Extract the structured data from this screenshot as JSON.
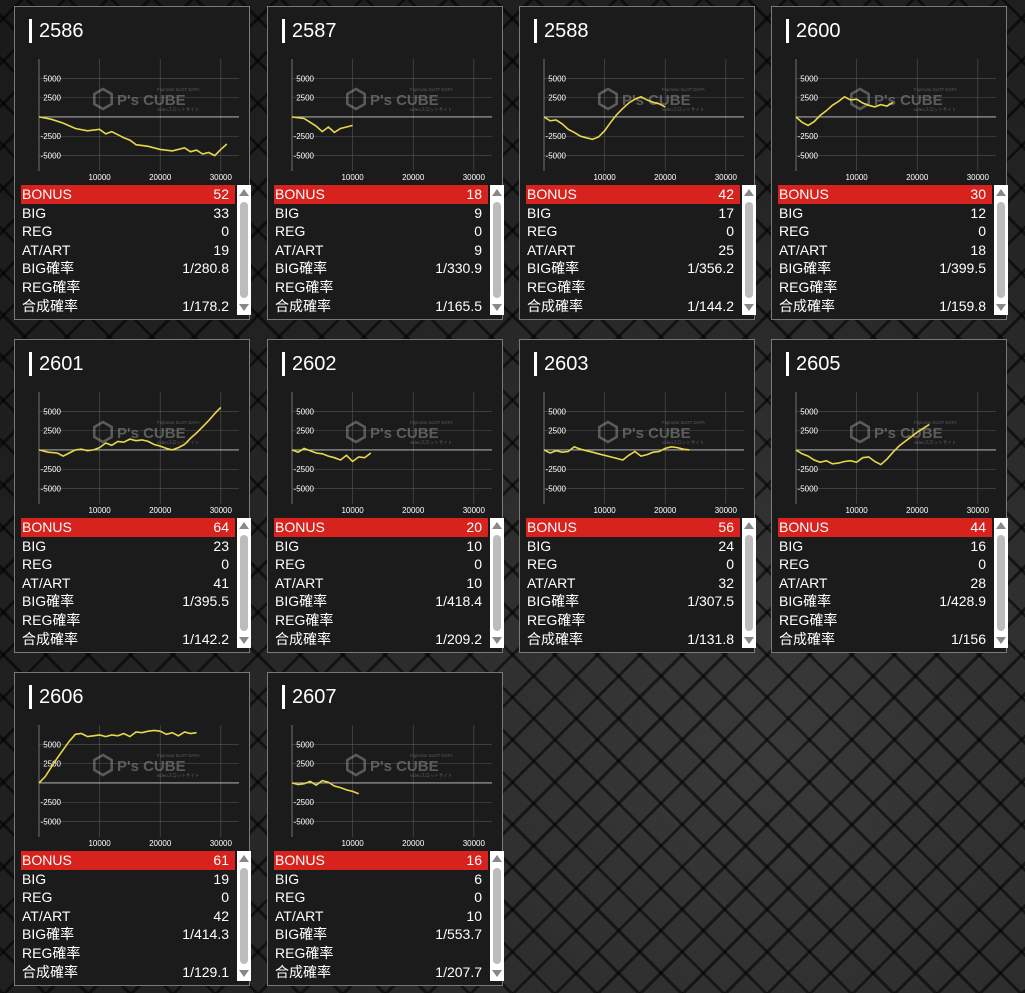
{
  "labels": {
    "bonus": "BONUS",
    "big": "BIG",
    "reg": "REG",
    "at_art": "AT/ART",
    "big_rate": "BIG確率",
    "reg_rate": "REG確率",
    "combined_rate": "合成確率"
  },
  "watermark": {
    "brand": "P's CUBE",
    "small_top": "Fujimoto SLOT DATA",
    "small_bottom": "videoスロットサイト"
  },
  "icons": {
    "scroll_up": "triangle-up-icon",
    "scroll_down": "triangle-down-icon",
    "logo": "pscube-logo-icon"
  },
  "colors": {
    "line": "#e8d84a",
    "bonus_bar": "#d8221e",
    "grid": "#555555",
    "zero_line": "#cccccc"
  },
  "machines": [
    {
      "id": "2586",
      "bonus": "52",
      "big": "33",
      "reg": "0",
      "at_art": "19",
      "big_rate": "1/280.8",
      "reg_rate": "",
      "combined_rate": "1/178.2"
    },
    {
      "id": "2587",
      "bonus": "18",
      "big": "9",
      "reg": "0",
      "at_art": "9",
      "big_rate": "1/330.9",
      "reg_rate": "",
      "combined_rate": "1/165.5"
    },
    {
      "id": "2588",
      "bonus": "42",
      "big": "17",
      "reg": "0",
      "at_art": "25",
      "big_rate": "1/356.2",
      "reg_rate": "",
      "combined_rate": "1/144.2"
    },
    {
      "id": "2600",
      "bonus": "30",
      "big": "12",
      "reg": "0",
      "at_art": "18",
      "big_rate": "1/399.5",
      "reg_rate": "",
      "combined_rate": "1/159.8"
    },
    {
      "id": "2601",
      "bonus": "64",
      "big": "23",
      "reg": "0",
      "at_art": "41",
      "big_rate": "1/395.5",
      "reg_rate": "",
      "combined_rate": "1/142.2"
    },
    {
      "id": "2602",
      "bonus": "20",
      "big": "10",
      "reg": "0",
      "at_art": "10",
      "big_rate": "1/418.4",
      "reg_rate": "",
      "combined_rate": "1/209.2"
    },
    {
      "id": "2603",
      "bonus": "56",
      "big": "24",
      "reg": "0",
      "at_art": "32",
      "big_rate": "1/307.5",
      "reg_rate": "",
      "combined_rate": "1/131.8"
    },
    {
      "id": "2605",
      "bonus": "44",
      "big": "16",
      "reg": "0",
      "at_art": "28",
      "big_rate": "1/428.9",
      "reg_rate": "",
      "combined_rate": "1/156"
    },
    {
      "id": "2606",
      "bonus": "61",
      "big": "19",
      "reg": "0",
      "at_art": "42",
      "big_rate": "1/414.3",
      "reg_rate": "",
      "combined_rate": "1/129.1"
    },
    {
      "id": "2607",
      "bonus": "16",
      "big": "6",
      "reg": "0",
      "at_art": "10",
      "big_rate": "1/553.7",
      "reg_rate": "",
      "combined_rate": "1/207.7"
    }
  ],
  "chart_data": [
    {
      "type": "line",
      "machine": "2586",
      "xlim": [
        0,
        33000
      ],
      "ylim": [
        -7000,
        7500
      ],
      "xticks": [
        "10000",
        "20000",
        "30000"
      ],
      "yticks": [
        "5000",
        "2500",
        "-2500",
        "-5000"
      ],
      "x": [
        0,
        2000,
        4000,
        6000,
        8000,
        10000,
        11000,
        12000,
        13000,
        14000,
        15000,
        16000,
        18000,
        20000,
        22000,
        24000,
        25000,
        26000,
        27000,
        28000,
        29000,
        30000,
        31000
      ],
      "y": [
        0,
        -300,
        -800,
        -1500,
        -1800,
        -1600,
        -2200,
        -1900,
        -2300,
        -2700,
        -3000,
        -3600,
        -3800,
        -4200,
        -4400,
        -4000,
        -4500,
        -4300,
        -4800,
        -4600,
        -5000,
        -4200,
        -3500
      ]
    },
    {
      "type": "line",
      "machine": "2587",
      "xlim": [
        0,
        33000
      ],
      "ylim": [
        -7000,
        7500
      ],
      "xticks": [
        "10000",
        "20000",
        "30000"
      ],
      "yticks": [
        "5000",
        "2500",
        "-2500",
        "-5000"
      ],
      "x": [
        0,
        2000,
        3000,
        4000,
        5000,
        6000,
        7000,
        8000,
        9000,
        10000
      ],
      "y": [
        0,
        -200,
        -700,
        -1200,
        -1900,
        -1300,
        -2000,
        -1500,
        -1300,
        -1100
      ]
    },
    {
      "type": "line",
      "machine": "2588",
      "xlim": [
        0,
        33000
      ],
      "ylim": [
        -7000,
        7500
      ],
      "xticks": [
        "10000",
        "20000",
        "30000"
      ],
      "yticks": [
        "5000",
        "2500",
        "-2500",
        "-5000"
      ],
      "x": [
        0,
        1000,
        2000,
        3000,
        4000,
        5000,
        6000,
        7000,
        8000,
        9000,
        10000,
        11000,
        12000,
        13000,
        14000,
        15000,
        16000,
        17000,
        18000,
        19000,
        20000
      ],
      "y": [
        0,
        -500,
        -400,
        -900,
        -1600,
        -2000,
        -2500,
        -2700,
        -2900,
        -2600,
        -1800,
        -700,
        300,
        1100,
        1800,
        2300,
        2600,
        2200,
        1900,
        1700,
        1300
      ]
    },
    {
      "type": "line",
      "machine": "2600",
      "xlim": [
        0,
        33000
      ],
      "ylim": [
        -7000,
        7500
      ],
      "xticks": [
        "10000",
        "20000",
        "30000"
      ],
      "yticks": [
        "5000",
        "2500",
        "-2500",
        "-5000"
      ],
      "x": [
        0,
        1000,
        2000,
        3000,
        4000,
        5000,
        6000,
        7000,
        8000,
        9000,
        10000,
        11000,
        12000,
        13000,
        14000,
        15000,
        16000
      ],
      "y": [
        0,
        -700,
        -1100,
        -600,
        200,
        800,
        1500,
        2000,
        2600,
        2200,
        2300,
        1800,
        1500,
        1300,
        1600,
        1400,
        1900
      ]
    },
    {
      "type": "line",
      "machine": "2601",
      "xlim": [
        0,
        33000
      ],
      "ylim": [
        -7000,
        7500
      ],
      "xticks": [
        "10000",
        "20000",
        "30000"
      ],
      "yticks": [
        "5000",
        "2500",
        "-2500",
        "-5000"
      ],
      "x": [
        0,
        1500,
        3000,
        4000,
        5000,
        6000,
        7000,
        8000,
        9000,
        10000,
        11000,
        12000,
        13000,
        14000,
        15000,
        16000,
        17000,
        18000,
        19000,
        20000,
        21000,
        22000,
        23000,
        24000,
        25000,
        26000,
        27000,
        28000,
        29000,
        30000
      ],
      "y": [
        0,
        -300,
        -400,
        -800,
        -400,
        0,
        100,
        -100,
        0,
        300,
        900,
        600,
        1100,
        1000,
        1400,
        1200,
        1300,
        1100,
        700,
        500,
        200,
        0,
        300,
        700,
        1500,
        2200,
        3000,
        3800,
        4700,
        5500
      ]
    },
    {
      "type": "line",
      "machine": "2602",
      "xlim": [
        0,
        33000
      ],
      "ylim": [
        -7000,
        7500
      ],
      "xticks": [
        "10000",
        "20000",
        "30000"
      ],
      "yticks": [
        "5000",
        "2500",
        "-2500",
        "-5000"
      ],
      "x": [
        0,
        1000,
        2000,
        3000,
        4000,
        5000,
        6000,
        7000,
        8000,
        9000,
        10000,
        11000,
        12000,
        13000
      ],
      "y": [
        0,
        -300,
        200,
        -100,
        -400,
        -500,
        -800,
        -1000,
        -1300,
        -700,
        -1500,
        -900,
        -1000,
        -400
      ]
    },
    {
      "type": "line",
      "machine": "2603",
      "xlim": [
        0,
        33000
      ],
      "ylim": [
        -7000,
        7500
      ],
      "xticks": [
        "10000",
        "20000",
        "30000"
      ],
      "yticks": [
        "5000",
        "2500",
        "-2500",
        "-5000"
      ],
      "x": [
        0,
        1000,
        2000,
        3000,
        4000,
        5000,
        6000,
        7000,
        8000,
        9000,
        10000,
        11000,
        12000,
        13000,
        14000,
        15000,
        16000,
        17000,
        18000,
        19000,
        20000,
        21000,
        22000,
        23000,
        24000
      ],
      "y": [
        0,
        -400,
        -100,
        -300,
        -200,
        400,
        100,
        -100,
        -300,
        -500,
        -700,
        -900,
        -1100,
        -1300,
        -700,
        -200,
        -800,
        -600,
        -300,
        -200,
        200,
        400,
        300,
        100,
        0
      ]
    },
    {
      "type": "line",
      "machine": "2605",
      "xlim": [
        0,
        33000
      ],
      "ylim": [
        -7000,
        7500
      ],
      "xticks": [
        "10000",
        "20000",
        "30000"
      ],
      "yticks": [
        "5000",
        "2500",
        "-2500",
        "-5000"
      ],
      "x": [
        0,
        1000,
        2000,
        3000,
        4000,
        5000,
        6000,
        7000,
        8000,
        9000,
        10000,
        11000,
        12000,
        13000,
        14000,
        15000,
        16000,
        17000,
        18000,
        19000,
        20000,
        21000,
        22000
      ],
      "y": [
        0,
        -500,
        -800,
        -1300,
        -1600,
        -1400,
        -1800,
        -1700,
        -1500,
        -1400,
        -1600,
        -1000,
        -900,
        -1500,
        -1900,
        -1200,
        -300,
        500,
        1100,
        1700,
        2300,
        2800,
        3300
      ]
    },
    {
      "type": "line",
      "machine": "2606",
      "xlim": [
        0,
        33000
      ],
      "ylim": [
        -7000,
        7500
      ],
      "xticks": [
        "10000",
        "20000",
        "30000"
      ],
      "yticks": [
        "5000",
        "2500",
        "-2500",
        "-5000"
      ],
      "x": [
        0,
        1000,
        2000,
        3000,
        4000,
        5000,
        6000,
        7000,
        8000,
        9000,
        10000,
        11000,
        12000,
        13000,
        14000,
        15000,
        16000,
        17000,
        18000,
        19000,
        20000,
        21000,
        22000,
        23000,
        24000,
        25000,
        26000
      ],
      "y": [
        0,
        800,
        2000,
        3200,
        4300,
        5400,
        6300,
        6400,
        6000,
        6100,
        6200,
        6000,
        6200,
        6100,
        6400,
        6000,
        6600,
        6500,
        6700,
        6800,
        6700,
        6300,
        6500,
        6100,
        6600,
        6400,
        6500
      ]
    },
    {
      "type": "line",
      "machine": "2607",
      "xlim": [
        0,
        33000
      ],
      "ylim": [
        -7000,
        7500
      ],
      "xticks": [
        "10000",
        "20000",
        "30000"
      ],
      "yticks": [
        "5000",
        "2500",
        "-2500",
        "-5000"
      ],
      "x": [
        0,
        1000,
        2000,
        3000,
        4000,
        5000,
        6000,
        7000,
        8000,
        9000,
        10000,
        11000
      ],
      "y": [
        0,
        -200,
        -100,
        200,
        -300,
        300,
        100,
        -400,
        -600,
        -900,
        -1100,
        -1400
      ]
    }
  ]
}
